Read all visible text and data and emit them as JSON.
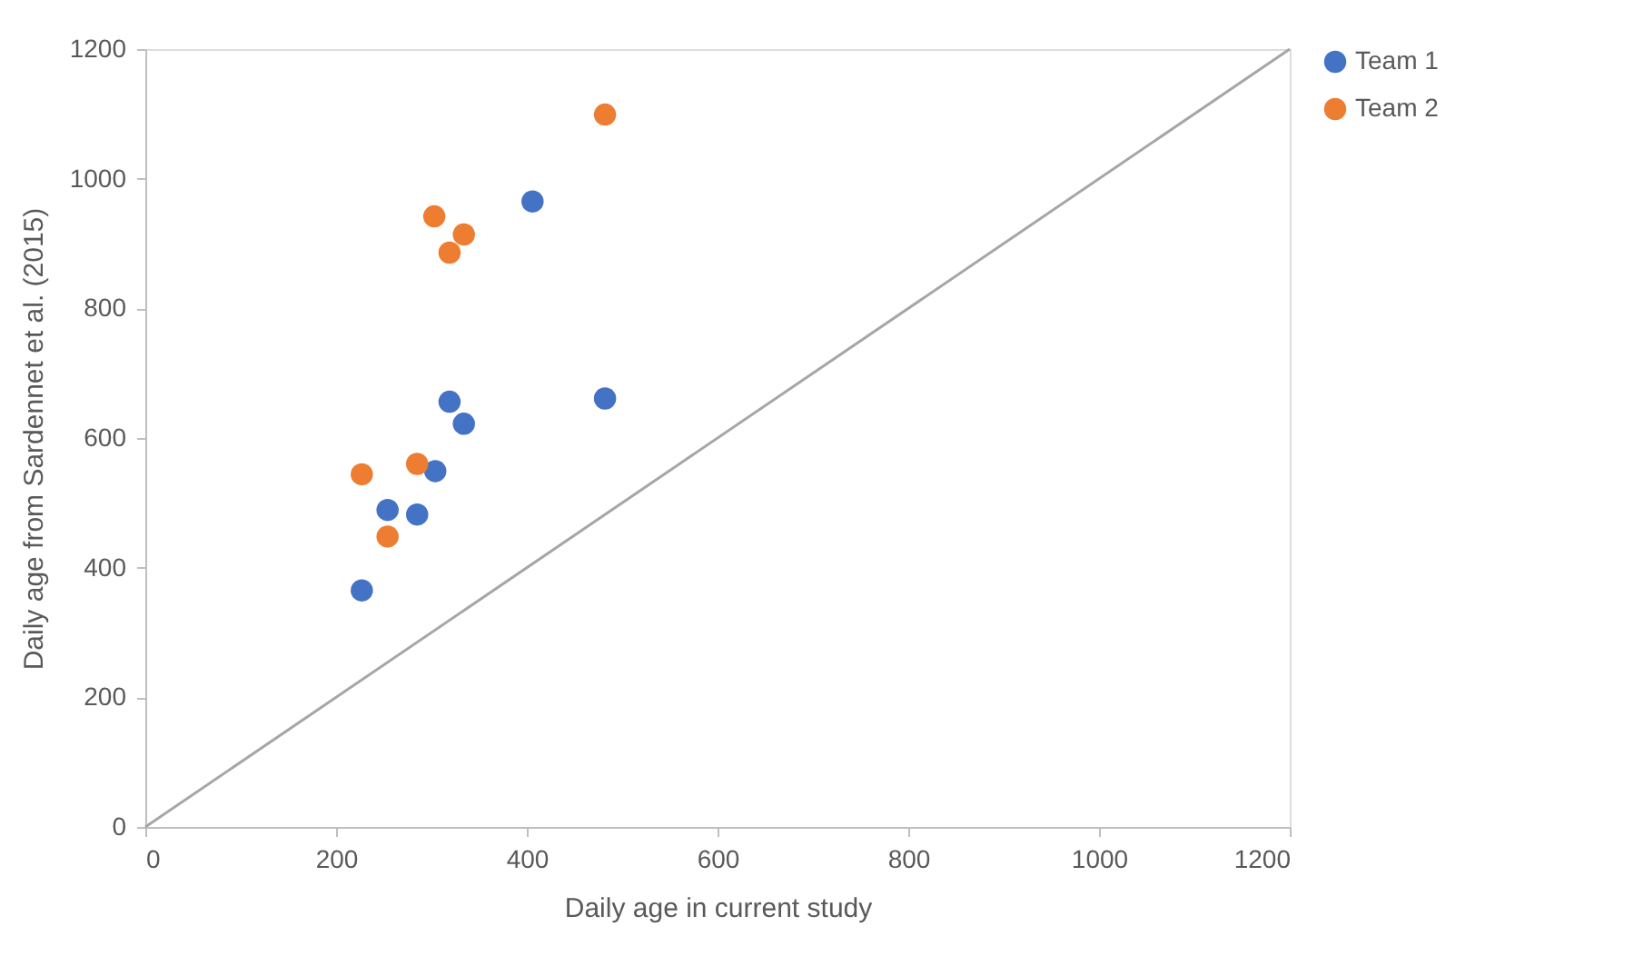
{
  "chart_data": {
    "type": "scatter",
    "xlabel": "Daily age in current study",
    "ylabel": "Daily age from Sardennet et al. (2015)",
    "xlim": [
      0,
      1200
    ],
    "xticks": [
      0,
      200,
      400,
      600,
      800,
      1000,
      1200
    ],
    "ylim": [
      0,
      1200
    ],
    "yticks": [
      0,
      200,
      400,
      600,
      800,
      1000,
      1200
    ],
    "grid": false,
    "legend": "right",
    "marker": "circle",
    "series": [
      {
        "name": "Team 1",
        "color": "#4472c4",
        "x": [
          227,
          254,
          285,
          304,
          319,
          334,
          406,
          482
        ],
        "values": [
          365,
          489,
          482,
          549,
          656,
          622,
          965,
          661
        ]
      },
      {
        "name": "Team 2",
        "color": "#ed7d31",
        "x": [
          227,
          254,
          285,
          303,
          319,
          334,
          482
        ],
        "values": [
          544,
          448,
          560,
          942,
          886,
          914,
          1099
        ]
      },
      {
        "type": "line",
        "color": "#a6a6a6",
        "x": [
          0,
          1200
        ],
        "values": [
          0,
          1200
        ],
        "marker": "none",
        "line_style": "solid"
      }
    ]
  }
}
